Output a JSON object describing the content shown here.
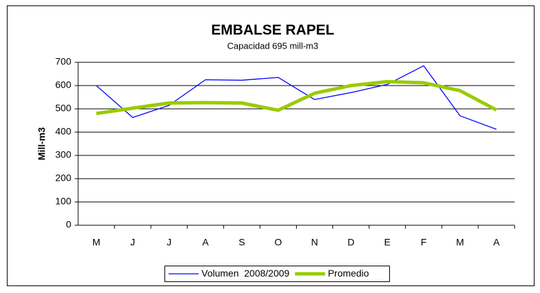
{
  "chart_data": {
    "type": "line",
    "title": "EMBALSE RAPEL",
    "subtitle": "Capacidad 695 mill-m3",
    "y_label": "Mill-m3",
    "categories": [
      "M",
      "J",
      "J",
      "A",
      "S",
      "O",
      "N",
      "D",
      "E",
      "F",
      "M",
      "A"
    ],
    "series": [
      {
        "name": "Volumen  2008/2009",
        "color": "#0000ff",
        "width": 1.3,
        "values": [
          600,
          463,
          515,
          625,
          623,
          635,
          540,
          570,
          605,
          685,
          470,
          412
        ]
      },
      {
        "name": "Promedio",
        "color": "#99cc00",
        "width": 5,
        "values": [
          480,
          503,
          525,
          527,
          525,
          494,
          567,
          600,
          617,
          612,
          578,
          495
        ]
      }
    ],
    "ylim": [
      0,
      700
    ],
    "yticks": [
      0,
      100,
      200,
      300,
      400,
      500,
      600,
      700
    ],
    "grid": true,
    "legend": "bottom"
  }
}
